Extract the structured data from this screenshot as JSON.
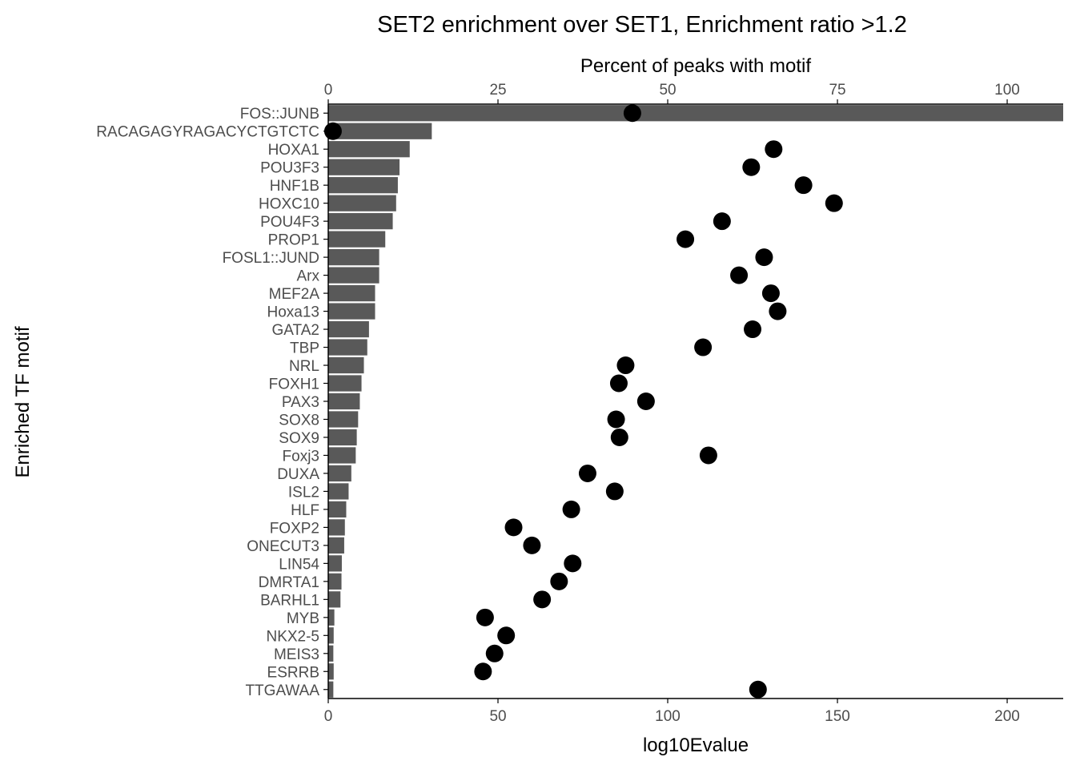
{
  "chart_data": {
    "type": "bar",
    "title": "SET2 enrichment over SET1, Enrichment ratio >1.2",
    "ylabel": "Enriched TF motif",
    "bottom_axis": {
      "label": "log10Evalue",
      "range": [
        0,
        216.5
      ],
      "ticks": [
        0,
        50,
        100,
        150,
        200
      ]
    },
    "top_axis": {
      "label": "Percent of peaks with motif",
      "range": [
        0,
        108.25
      ],
      "ticks": [
        0,
        25,
        50,
        75,
        100
      ]
    },
    "categories": [
      "FOS::JUNB",
      "RACAGAGYRAGACYCTGTCTC",
      "HOXA1",
      "POU3F3",
      "HNF1B",
      "HOXC10",
      "POU4F3",
      "PROP1",
      "FOSL1::JUND",
      "Arx",
      "MEF2A",
      "Hoxa13",
      "GATA2",
      "TBP",
      "NRL",
      "FOXH1",
      "PAX3",
      "SOX8",
      "SOX9",
      "Foxj3",
      "DUXA",
      "ISL2",
      "HLF",
      "FOXP2",
      "ONECUT3",
      "LIN54",
      "DMRTA1",
      "BARHL1",
      "MYB",
      "NKX2-5",
      "MEIS3",
      "ESRRB",
      "TTGAWAA"
    ],
    "series": [
      {
        "name": "log10Evalue",
        "mark": "bar",
        "axis": "bottom",
        "values": [
          216.5,
          30.5,
          24.0,
          21.0,
          20.5,
          20.0,
          19.0,
          16.8,
          15.0,
          15.0,
          13.8,
          13.8,
          12.0,
          11.5,
          10.5,
          9.8,
          9.3,
          8.8,
          8.4,
          8.1,
          6.8,
          6.0,
          5.3,
          4.9,
          4.7,
          4.0,
          3.9,
          3.6,
          1.8,
          1.6,
          1.5,
          1.6,
          1.5
        ]
      },
      {
        "name": "Percent of peaks with motif",
        "mark": "point",
        "axis": "top",
        "values": [
          44.8,
          0.7,
          65.6,
          62.3,
          70.0,
          74.5,
          58.0,
          52.6,
          64.2,
          60.5,
          65.2,
          66.2,
          62.5,
          55.2,
          43.8,
          42.8,
          46.8,
          42.4,
          42.9,
          56.0,
          38.2,
          42.2,
          35.8,
          27.3,
          30.0,
          36.0,
          34.0,
          31.5,
          23.1,
          26.2,
          24.5,
          22.8,
          63.3
        ]
      }
    ]
  },
  "colors": {
    "bar": "#595959",
    "point": "#000000",
    "axis_line": "#000000",
    "tick_text": "#4d4d4d"
  }
}
